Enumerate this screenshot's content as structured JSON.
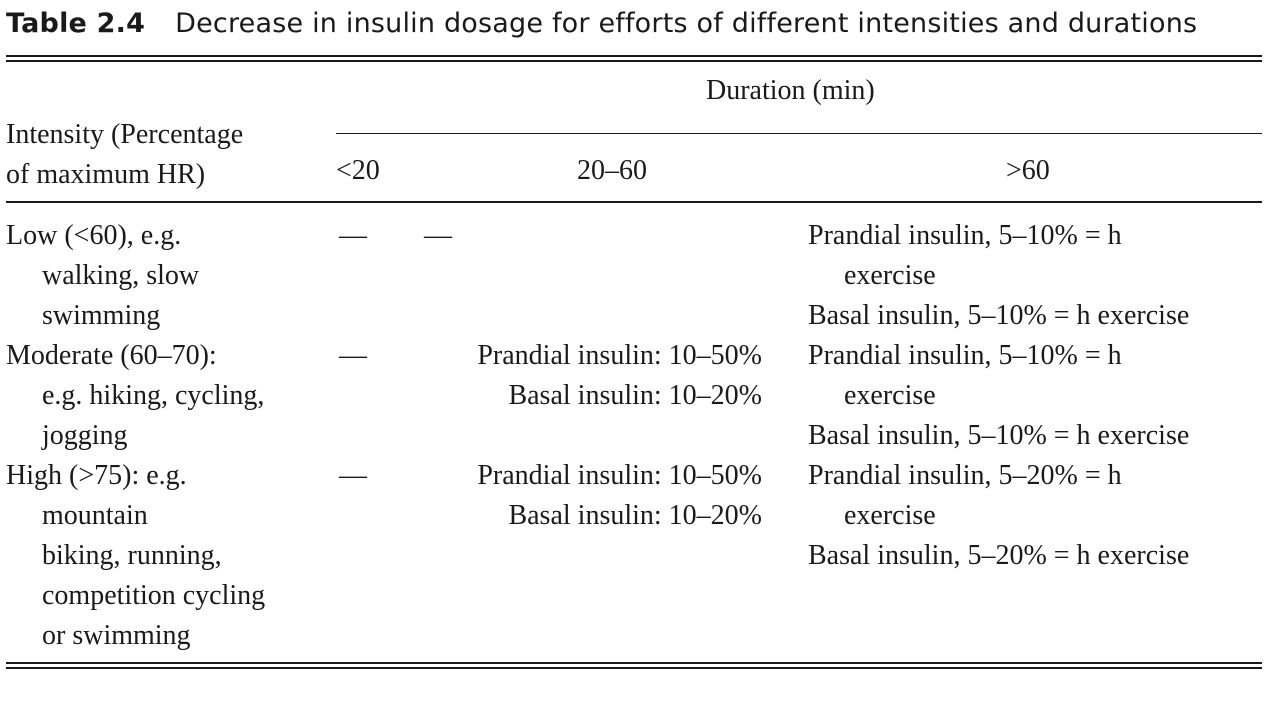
{
  "caption": {
    "label": "Table 2.4",
    "title": "Decrease in insulin dosage for efforts of different intensities and durations"
  },
  "header": {
    "spanner": "Duration (min)",
    "row_header_lines": [
      "Intensity (Percentage",
      "of maximum HR)"
    ],
    "columns": [
      "<20",
      "20–60",
      ">60"
    ]
  },
  "rows": [
    {
      "intensity_lines": [
        "Low (<60), e.g.",
        "walking, slow",
        "swimming"
      ],
      "lt20": "—",
      "mid": [
        "—"
      ],
      "gt60_lines": [
        "Prandial insulin, 5–10% = h",
        "exercise",
        "Basal insulin, 5–10% = h exercise"
      ]
    },
    {
      "intensity_lines": [
        "Moderate (60–70):",
        "e.g. hiking, cycling,",
        "jogging"
      ],
      "lt20": "—",
      "mid": [
        "Prandial insulin: 10–50%",
        "Basal insulin: 10–20%"
      ],
      "gt60_lines": [
        "Prandial insulin, 5–10% = h",
        "exercise",
        "Basal insulin, 5–10% = h exercise"
      ]
    },
    {
      "intensity_lines": [
        "High (>75): e.g.",
        "mountain",
        "biking, running,",
        "competition cycling",
        "or swimming"
      ],
      "lt20": "—",
      "mid": [
        "Prandial insulin: 10–50%",
        "Basal insulin: 10–20%"
      ],
      "gt60_lines": [
        "Prandial insulin, 5–20% = h",
        "exercise",
        "Basal insulin, 5–20% = h exercise"
      ]
    }
  ]
}
